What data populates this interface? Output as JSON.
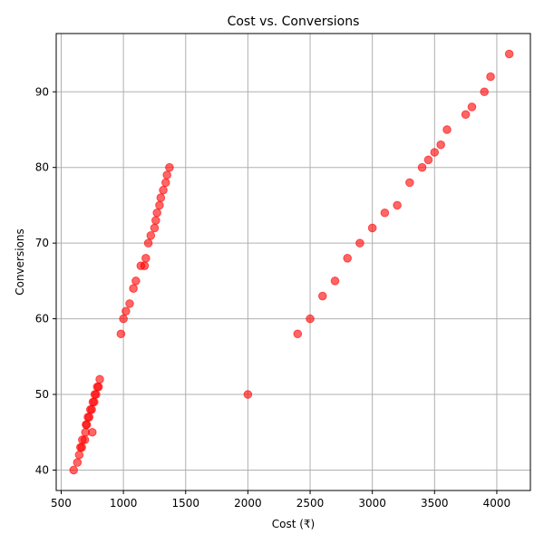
{
  "chart_data": {
    "type": "scatter",
    "title": "Cost vs. Conversions",
    "xlabel": "Cost (₹)",
    "ylabel": "Conversions",
    "xlim": [
      460,
      4270
    ],
    "ylim": [
      37.3,
      97.7
    ],
    "xticks": [
      500,
      1000,
      1500,
      2000,
      2500,
      3000,
      3500,
      4000
    ],
    "yticks": [
      40,
      50,
      60,
      70,
      80,
      90
    ],
    "grid": true,
    "marker_color": "#ff0000",
    "marker_alpha": 0.6,
    "series": [
      {
        "points": [
          [
            600,
            40
          ],
          [
            630,
            41
          ],
          [
            645,
            42
          ],
          [
            655,
            43
          ],
          [
            665,
            43
          ],
          [
            670,
            44
          ],
          [
            690,
            44
          ],
          [
            695,
            45
          ],
          [
            700,
            46
          ],
          [
            705,
            46
          ],
          [
            715,
            47
          ],
          [
            725,
            47
          ],
          [
            735,
            48
          ],
          [
            745,
            48
          ],
          [
            755,
            49
          ],
          [
            765,
            49
          ],
          [
            750,
            45
          ],
          [
            770,
            50
          ],
          [
            780,
            50
          ],
          [
            790,
            51
          ],
          [
            800,
            51
          ],
          [
            810,
            52
          ],
          [
            980,
            58
          ],
          [
            1000,
            60
          ],
          [
            1020,
            61
          ],
          [
            1050,
            62
          ],
          [
            1080,
            64
          ],
          [
            1100,
            65
          ],
          [
            1140,
            67
          ],
          [
            1170,
            67
          ],
          [
            1180,
            68
          ],
          [
            1200,
            70
          ],
          [
            1220,
            71
          ],
          [
            1250,
            72
          ],
          [
            1260,
            73
          ],
          [
            1270,
            74
          ],
          [
            1290,
            75
          ],
          [
            1300,
            76
          ],
          [
            1320,
            77
          ],
          [
            1340,
            78
          ],
          [
            1350,
            79
          ],
          [
            1370,
            80
          ],
          [
            2000,
            50
          ],
          [
            2400,
            58
          ],
          [
            2500,
            60
          ],
          [
            2600,
            63
          ],
          [
            2700,
            65
          ],
          [
            2800,
            68
          ],
          [
            2900,
            70
          ],
          [
            3000,
            72
          ],
          [
            3100,
            74
          ],
          [
            3200,
            75
          ],
          [
            3300,
            78
          ],
          [
            3400,
            80
          ],
          [
            3450,
            81
          ],
          [
            3500,
            82
          ],
          [
            3550,
            83
          ],
          [
            3600,
            85
          ],
          [
            3750,
            87
          ],
          [
            3800,
            88
          ],
          [
            3900,
            90
          ],
          [
            3950,
            92
          ],
          [
            4100,
            95
          ]
        ]
      }
    ]
  }
}
